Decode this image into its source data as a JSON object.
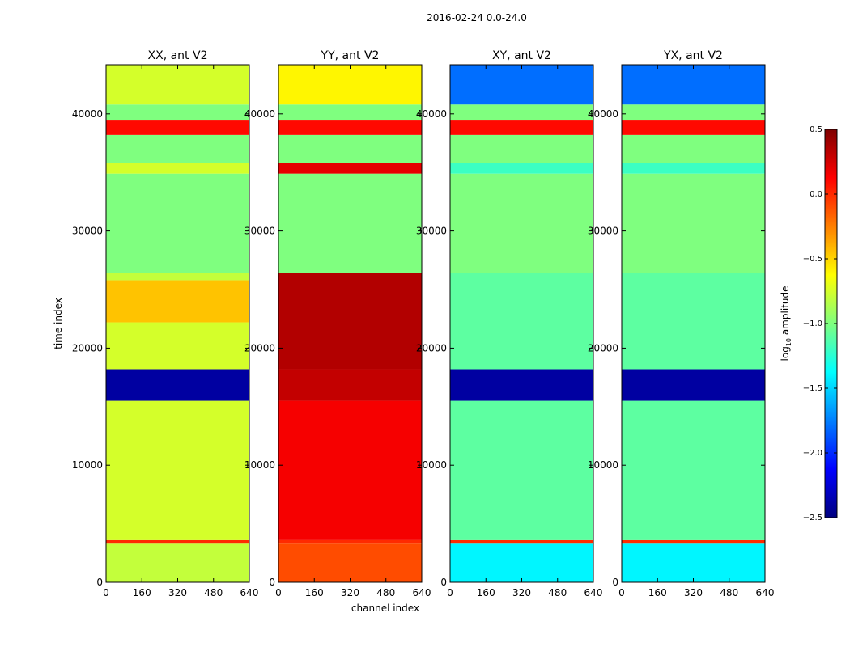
{
  "figure": {
    "suptitle": "2016-02-24 0.0-24.0",
    "xlabel": "channel index",
    "ylabel": "time index"
  },
  "chart_data": {
    "type": "heatmap",
    "x": {
      "label": "channel index",
      "lim": [
        0,
        640
      ],
      "ticks": [
        0,
        160,
        320,
        480,
        640
      ]
    },
    "y": {
      "label": "time index",
      "lim": [
        0,
        44200
      ],
      "ticks": [
        0,
        10000,
        20000,
        30000,
        40000
      ]
    },
    "colorbar": {
      "label_prefix": "log",
      "label_sub": "10",
      "label_suffix": " amplitude",
      "lim": [
        -2.5,
        0.5
      ],
      "ticks": [
        0.5,
        0.0,
        -0.5,
        -1.0,
        -1.5,
        -2.0,
        -2.5
      ],
      "tick_labels": [
        "0.5",
        "0.0",
        "−0.5",
        "−1.0",
        "−1.5",
        "−2.0",
        "−2.5"
      ],
      "colormap": "jet",
      "colors": [
        "#00007f",
        "#0000ff",
        "#007fff",
        "#00ffff",
        "#7fff7f",
        "#ffff00",
        "#ff7f00",
        "#ff0000",
        "#7f0000"
      ]
    },
    "panels": [
      {
        "title": "XX, ant V2",
        "bands": [
          {
            "from": 0,
            "to": 3300,
            "value": -0.8
          },
          {
            "from": 3300,
            "to": 3600,
            "value": 0.0
          },
          {
            "from": 3600,
            "to": 15500,
            "value": -0.75
          },
          {
            "from": 15500,
            "to": 18200,
            "value": -2.4
          },
          {
            "from": 18200,
            "to": 22200,
            "value": -0.75
          },
          {
            "from": 22200,
            "to": 25800,
            "value": -0.45
          },
          {
            "from": 25800,
            "to": 26400,
            "value": -0.8
          },
          {
            "from": 26400,
            "to": 34900,
            "value": -1.0
          },
          {
            "from": 34900,
            "to": 35800,
            "value": -0.75
          },
          {
            "from": 35800,
            "to": 38200,
            "value": -1.0
          },
          {
            "from": 38200,
            "to": 39500,
            "value": 0.1
          },
          {
            "from": 39500,
            "to": 40800,
            "value": -1.0
          },
          {
            "from": 40800,
            "to": 44200,
            "value": -0.75
          }
        ]
      },
      {
        "title": "YY, ant V2",
        "bands": [
          {
            "from": 0,
            "to": 3300,
            "value": -0.1
          },
          {
            "from": 3300,
            "to": 3600,
            "value": 0.0
          },
          {
            "from": 3600,
            "to": 15500,
            "value": 0.15
          },
          {
            "from": 15500,
            "to": 18200,
            "value": 0.3
          },
          {
            "from": 18200,
            "to": 26400,
            "value": 0.35
          },
          {
            "from": 26400,
            "to": 34900,
            "value": -1.0
          },
          {
            "from": 34900,
            "to": 35800,
            "value": 0.2
          },
          {
            "from": 35800,
            "to": 38200,
            "value": -1.0
          },
          {
            "from": 38200,
            "to": 39500,
            "value": 0.1
          },
          {
            "from": 39500,
            "to": 40800,
            "value": -1.0
          },
          {
            "from": 40800,
            "to": 44200,
            "value": -0.6
          }
        ]
      },
      {
        "title": "XY, ant V2",
        "bands": [
          {
            "from": 0,
            "to": 3300,
            "value": -1.4
          },
          {
            "from": 3300,
            "to": 3600,
            "value": 0.0
          },
          {
            "from": 3600,
            "to": 15500,
            "value": -1.1
          },
          {
            "from": 15500,
            "to": 18200,
            "value": -2.4
          },
          {
            "from": 18200,
            "to": 26400,
            "value": -1.1
          },
          {
            "from": 26400,
            "to": 34900,
            "value": -1.0
          },
          {
            "from": 34900,
            "to": 35800,
            "value": -1.2
          },
          {
            "from": 35800,
            "to": 38200,
            "value": -1.0
          },
          {
            "from": 38200,
            "to": 39500,
            "value": 0.1
          },
          {
            "from": 39500,
            "to": 40800,
            "value": -1.0
          },
          {
            "from": 40800,
            "to": 44200,
            "value": -1.8
          }
        ]
      },
      {
        "title": "YX, ant V2",
        "bands": [
          {
            "from": 0,
            "to": 3300,
            "value": -1.4
          },
          {
            "from": 3300,
            "to": 3600,
            "value": 0.0
          },
          {
            "from": 3600,
            "to": 15500,
            "value": -1.1
          },
          {
            "from": 15500,
            "to": 18200,
            "value": -2.4
          },
          {
            "from": 18200,
            "to": 26400,
            "value": -1.1
          },
          {
            "from": 26400,
            "to": 34900,
            "value": -1.0
          },
          {
            "from": 34900,
            "to": 35800,
            "value": -1.2
          },
          {
            "from": 35800,
            "to": 38200,
            "value": -1.0
          },
          {
            "from": 38200,
            "to": 39500,
            "value": 0.1
          },
          {
            "from": 39500,
            "to": 40800,
            "value": -1.0
          },
          {
            "from": 40800,
            "to": 44200,
            "value": -1.8
          }
        ]
      }
    ]
  }
}
